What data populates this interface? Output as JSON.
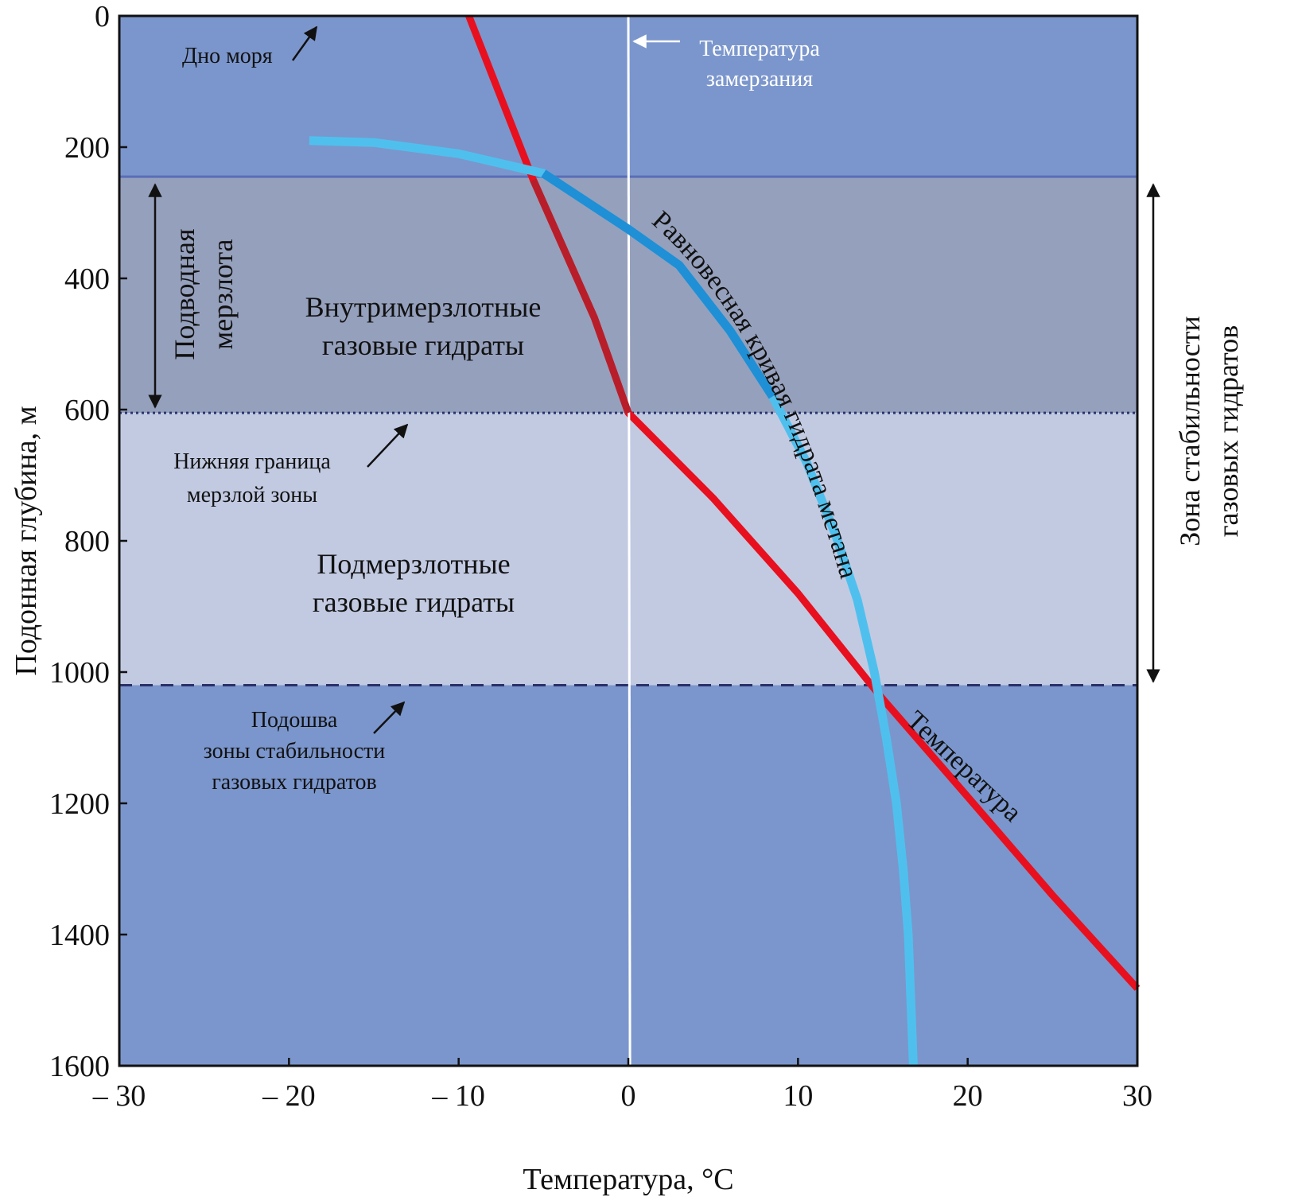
{
  "chart_data": {
    "type": "line",
    "title": "",
    "xlabel": "Температура, °C",
    "ylabel": "Подонная глубина, м",
    "xlim": [
      -30,
      30
    ],
    "ylim": [
      0,
      1600
    ],
    "y_inverted": true,
    "x_ticks": [
      "– 30",
      "– 20",
      "– 10",
      "0",
      "10",
      "20",
      "30"
    ],
    "x_tick_values": [
      -30,
      -20,
      -10,
      0,
      10,
      20,
      30
    ],
    "y_ticks": [
      "0",
      "200",
      "400",
      "600",
      "800",
      "1000",
      "1200",
      "1400",
      "1600"
    ],
    "y_tick_values": [
      0,
      200,
      400,
      600,
      800,
      1000,
      1200,
      1400,
      1600
    ],
    "bands": [
      {
        "from": 0,
        "to": 245,
        "color": "#7b96cc"
      },
      {
        "from": 245,
        "to": 605,
        "color": "#95a0bc"
      },
      {
        "from": 605,
        "to": 1020,
        "color": "#c2cae2"
      },
      {
        "from": 1020,
        "to": 1600,
        "color": "#7b96cc"
      }
    ],
    "boundaries": {
      "seabed_band_top": 245,
      "permafrost_bottom": 605,
      "stability_base": 1020
    },
    "series": [
      {
        "name": "Температура",
        "color": "#e8101e",
        "points": [
          [
            -9.4,
            0
          ],
          [
            -5.6,
            250
          ],
          [
            -2.0,
            460
          ],
          [
            0,
            605
          ],
          [
            5,
            735
          ],
          [
            10,
            880
          ],
          [
            14.8,
            1035
          ],
          [
            20,
            1190
          ],
          [
            25,
            1340
          ],
          [
            30,
            1482
          ]
        ]
      },
      {
        "name": "Равновесная кривая гидрата метана",
        "color": "#4fc0ee",
        "points": [
          [
            -18.8,
            190
          ],
          [
            -15,
            193
          ],
          [
            -10,
            210
          ],
          [
            -5,
            240
          ],
          [
            0,
            325
          ],
          [
            3,
            380
          ],
          [
            6,
            480
          ],
          [
            8.5,
            580
          ],
          [
            10.5,
            680
          ],
          [
            12.2,
            790
          ],
          [
            13.5,
            890
          ],
          [
            14.5,
            1000
          ],
          [
            15.2,
            1100
          ],
          [
            15.8,
            1200
          ],
          [
            16.2,
            1300
          ],
          [
            16.5,
            1400
          ],
          [
            16.8,
            1600
          ]
        ]
      },
      {
        "name": "Температура замерзания",
        "color": "#ffffff",
        "points": [
          [
            0,
            0
          ],
          [
            0.1,
            1600
          ]
        ]
      }
    ],
    "annotations": {
      "seabed": "Дно моря",
      "freezing_1": "Температура",
      "freezing_2": "замерзания",
      "permafrost_1": "Подводная",
      "permafrost_2": "мерзлота",
      "intra_1": "Внутримерзлотные",
      "intra_2": "газовые гидраты",
      "lower_bound_1": "Нижняя граница",
      "lower_bound_2": "мерзлой зоны",
      "sub_1": "Подмерзлотные",
      "sub_2": "газовые гидраты",
      "base_1": "Подошва",
      "base_2": "зоны стабильности",
      "base_3": "газовых гидратов",
      "zone_1": "Зона стабильности",
      "zone_2": "газовых гидратов",
      "hydrate_curve": "Равновесная кривая гидрата метана",
      "temperature_curve": "Температура"
    }
  }
}
